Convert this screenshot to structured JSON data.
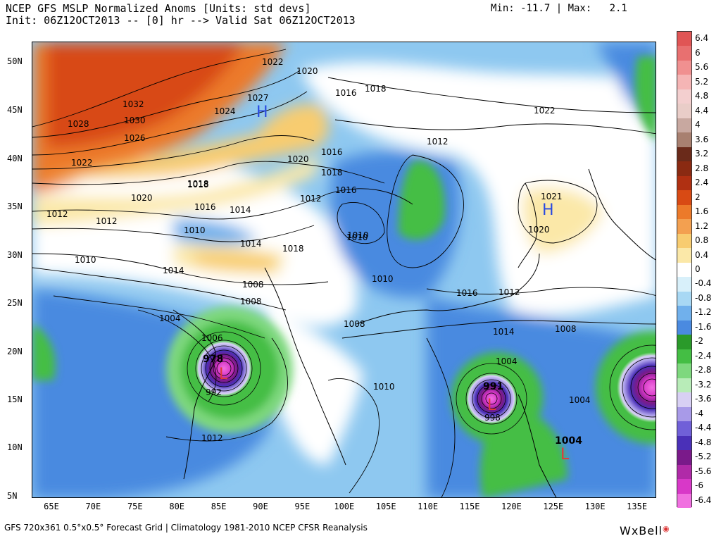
{
  "header": {
    "title": "NCEP GFS MSLP Normalized Anoms [Units: std devs]",
    "init_line": "Init: 06Z12OCT2013 -- [0] hr --> Valid Sat 06Z12OCT2013",
    "minmax": "Min: -11.7 | Max:   2.1"
  },
  "axes": {
    "lat_labels": [
      "50N",
      "45N",
      "40N",
      "35N",
      "30N",
      "25N",
      "20N",
      "15N",
      "10N",
      "5N"
    ],
    "lon_labels": [
      "65E",
      "70E",
      "75E",
      "80E",
      "85E",
      "90E",
      "95E",
      "100E",
      "105E",
      "110E",
      "115E",
      "120E",
      "125E",
      "130E",
      "135E"
    ]
  },
  "colorbar": {
    "labels": [
      "6.4",
      "6",
      "5.6",
      "5.2",
      "4.8",
      "4.4",
      "4",
      "3.6",
      "3.2",
      "2.8",
      "2.4",
      "2",
      "1.6",
      "1.2",
      "0.8",
      "0.4",
      "0",
      "-0.4",
      "-0.8",
      "-1.2",
      "-1.6",
      "-2",
      "-2.4",
      "-2.8",
      "-3.2",
      "-3.6",
      "-4",
      "-4.4",
      "-4.8",
      "-5.2",
      "-5.6",
      "-6",
      "-6.4"
    ],
    "colors": [
      "#e05555",
      "#e87070",
      "#f09090",
      "#f5b5b5",
      "#f3cfcf",
      "#e9cdc8",
      "#c8a8a0",
      "#a88070",
      "#6a2a1a",
      "#8a2a12",
      "#b03012",
      "#d84a14",
      "#ec7a2a",
      "#f3a050",
      "#f8cc70",
      "#fbe8a8",
      "#ffffff",
      "#d8f0fa",
      "#a8d8f4",
      "#70b0ec",
      "#4a8ae0",
      "#2a9a2a",
      "#44be44",
      "#7ed87e",
      "#b8ecb8",
      "#d8d0f4",
      "#a89ae8",
      "#7060d8",
      "#4a30b8",
      "#7a1a8a",
      "#b02aa8",
      "#d838c8",
      "#f070e0"
    ]
  },
  "map_labels": {
    "contours": [
      "1022",
      "1020",
      "1016",
      "1018",
      "1027",
      "1032",
      "1024",
      "1030",
      "1028",
      "1026",
      "1022",
      "1018",
      "1020",
      "1016",
      "1012",
      "1022",
      "1018",
      "1018",
      "1020",
      "1016",
      "1014",
      "1012",
      "1016",
      "1012",
      "1012",
      "1010",
      "1014",
      "1018",
      "1010",
      "1010",
      "1010",
      "1014",
      "1008",
      "1008",
      "1004",
      "1006",
      "1012",
      "1008",
      "1010",
      "1014",
      "1012",
      "1016",
      "1021",
      "1020",
      "1008",
      "1004",
      "998",
      "1010",
      "992",
      "1004"
    ],
    "pressure_centers": [
      "978",
      "991",
      "1004"
    ],
    "high_symbol": "H",
    "low_symbol": "L"
  },
  "footer": {
    "text": "GFS 720x361 0.5°x0.5° Forecast Grid | Climatology 1981-2010 NCEP CFSR Reanalysis",
    "brand": "WxBell"
  }
}
